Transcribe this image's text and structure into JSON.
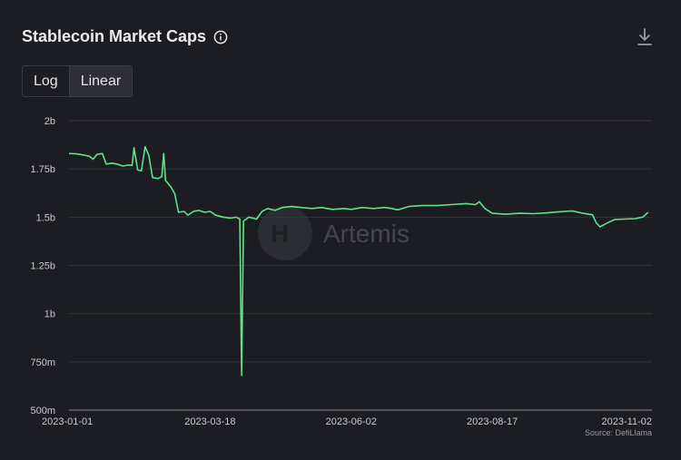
{
  "header": {
    "title": "Stablecoin Market Caps"
  },
  "toggle": {
    "log_label": "Log",
    "linear_label": "Linear"
  },
  "watermark": {
    "text": "Artemis"
  },
  "colors": {
    "line": "#5ee38a",
    "background": "#1c1d22",
    "grid": "#33343b"
  },
  "icons": {
    "info": "info-icon",
    "download": "download-icon"
  },
  "chart_data": {
    "type": "line",
    "title": "Stablecoin Market Caps",
    "scale": "linear",
    "grid": true,
    "ylim": [
      500000000,
      2000000000
    ],
    "y_ticks": [
      {
        "value": 2000000000,
        "label": "2b"
      },
      {
        "value": 1750000000,
        "label": "1.75b"
      },
      {
        "value": 1500000000,
        "label": "1.5b"
      },
      {
        "value": 1250000000,
        "label": "1.25b"
      },
      {
        "value": 1000000000,
        "label": "1b"
      },
      {
        "value": 750000000,
        "label": "750m"
      },
      {
        "value": 500000000,
        "label": "500m"
      }
    ],
    "x_ticks": [
      "2023-01-01",
      "2023-03-18",
      "2023-06-02",
      "2023-08-17",
      "2023-11-02"
    ],
    "xlim": [
      "2023-01-01",
      "2023-11-11"
    ],
    "source": "Source: DefiLlama",
    "series": [
      {
        "points": [
          [
            "2023-01-01",
            1830000000
          ],
          [
            "2023-01-05",
            1828000000
          ],
          [
            "2023-01-09",
            1822000000
          ],
          [
            "2023-01-12",
            1815000000
          ],
          [
            "2023-01-14",
            1800000000
          ],
          [
            "2023-01-16",
            1825000000
          ],
          [
            "2023-01-19",
            1830000000
          ],
          [
            "2023-01-21",
            1775000000
          ],
          [
            "2023-01-24",
            1780000000
          ],
          [
            "2023-01-27",
            1775000000
          ],
          [
            "2023-01-30",
            1765000000
          ],
          [
            "2023-02-02",
            1770000000
          ],
          [
            "2023-02-04",
            1768000000
          ],
          [
            "2023-02-05",
            1860000000
          ],
          [
            "2023-02-07",
            1745000000
          ],
          [
            "2023-02-09",
            1740000000
          ],
          [
            "2023-02-11",
            1865000000
          ],
          [
            "2023-02-13",
            1820000000
          ],
          [
            "2023-02-15",
            1705000000
          ],
          [
            "2023-02-18",
            1700000000
          ],
          [
            "2023-02-20",
            1710000000
          ],
          [
            "2023-02-21",
            1830000000
          ],
          [
            "2023-02-22",
            1690000000
          ],
          [
            "2023-02-25",
            1655000000
          ],
          [
            "2023-02-27",
            1620000000
          ],
          [
            "2023-03-01",
            1525000000
          ],
          [
            "2023-03-04",
            1530000000
          ],
          [
            "2023-03-06",
            1510000000
          ],
          [
            "2023-03-09",
            1530000000
          ],
          [
            "2023-03-12",
            1535000000
          ],
          [
            "2023-03-15",
            1525000000
          ],
          [
            "2023-03-18",
            1530000000
          ],
          [
            "2023-03-21",
            1510000000
          ],
          [
            "2023-03-25",
            1500000000
          ],
          [
            "2023-03-29",
            1495000000
          ],
          [
            "2023-04-01",
            1500000000
          ],
          [
            "2023-04-03",
            1490000000
          ],
          [
            "2023-04-04",
            680000000
          ],
          [
            "2023-04-05",
            1480000000
          ],
          [
            "2023-04-08",
            1500000000
          ],
          [
            "2023-04-12",
            1490000000
          ],
          [
            "2023-04-15",
            1530000000
          ],
          [
            "2023-04-18",
            1545000000
          ],
          [
            "2023-04-22",
            1535000000
          ],
          [
            "2023-04-26",
            1550000000
          ],
          [
            "2023-05-01",
            1555000000
          ],
          [
            "2023-05-06",
            1550000000
          ],
          [
            "2023-05-12",
            1545000000
          ],
          [
            "2023-05-17",
            1550000000
          ],
          [
            "2023-05-23",
            1540000000
          ],
          [
            "2023-05-29",
            1545000000
          ],
          [
            "2023-06-02",
            1540000000
          ],
          [
            "2023-06-08",
            1550000000
          ],
          [
            "2023-06-14",
            1545000000
          ],
          [
            "2023-06-20",
            1550000000
          ],
          [
            "2023-06-24",
            1545000000
          ],
          [
            "2023-06-27",
            1538000000
          ],
          [
            "2023-07-03",
            1555000000
          ],
          [
            "2023-07-10",
            1560000000
          ],
          [
            "2023-07-18",
            1560000000
          ],
          [
            "2023-07-26",
            1565000000
          ],
          [
            "2023-08-03",
            1570000000
          ],
          [
            "2023-08-08",
            1565000000
          ],
          [
            "2023-08-10",
            1580000000
          ],
          [
            "2023-08-13",
            1545000000
          ],
          [
            "2023-08-17",
            1520000000
          ],
          [
            "2023-08-24",
            1515000000
          ],
          [
            "2023-09-01",
            1520000000
          ],
          [
            "2023-09-08",
            1518000000
          ],
          [
            "2023-09-15",
            1522000000
          ],
          [
            "2023-09-22",
            1528000000
          ],
          [
            "2023-09-29",
            1532000000
          ],
          [
            "2023-10-05",
            1520000000
          ],
          [
            "2023-10-10",
            1512000000
          ],
          [
            "2023-10-12",
            1470000000
          ],
          [
            "2023-10-14",
            1450000000
          ],
          [
            "2023-10-18",
            1470000000
          ],
          [
            "2023-10-22",
            1488000000
          ],
          [
            "2023-10-27",
            1490000000
          ],
          [
            "2023-11-02",
            1492000000
          ],
          [
            "2023-11-06",
            1500000000
          ],
          [
            "2023-11-09",
            1525000000
          ]
        ]
      }
    ]
  }
}
